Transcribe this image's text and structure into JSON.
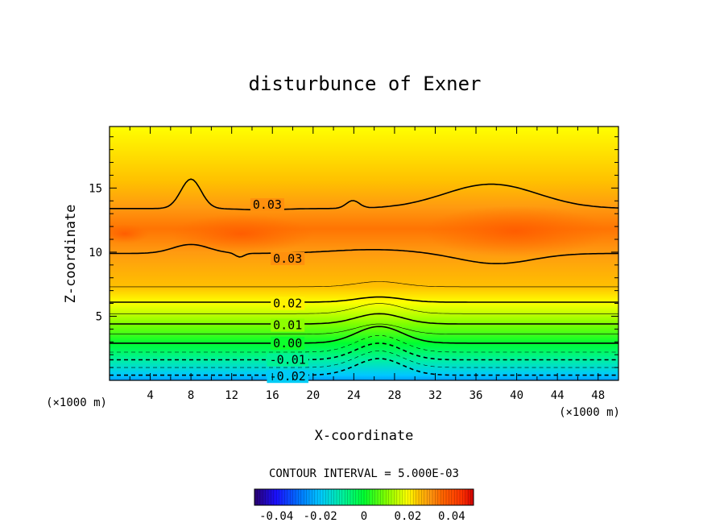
{
  "chart_data": {
    "type": "contour",
    "title": "disturbunce of Exner",
    "xlabel": "X-coordinate",
    "ylabel": "Z-coordinate",
    "x_unit": "(×1000 m)",
    "x_ticks": [
      4,
      8,
      12,
      16,
      20,
      24,
      28,
      32,
      36,
      40,
      44,
      48
    ],
    "y_ticks": [
      5,
      10,
      15
    ],
    "xlim": [
      0,
      50
    ],
    "ylim": [
      0,
      19.8
    ],
    "contour_interval_text": "CONTOUR INTERVAL = 5.000E-03",
    "contour_interval": 0.005,
    "contour_labels": [
      {
        "text": "0.03",
        "value": 0.03,
        "x": 15.5,
        "z": 13.7
      },
      {
        "text": "0.03",
        "value": 0.03,
        "x": 17.5,
        "z": 9.5
      },
      {
        "text": "0.02",
        "value": 0.02,
        "x": 17.5,
        "z": 6.0
      },
      {
        "text": "0.01",
        "value": 0.01,
        "x": 17.5,
        "z": 4.3
      },
      {
        "text": "0.00",
        "value": 0.0,
        "x": 17.5,
        "z": 2.9
      },
      {
        "text": "-0.01",
        "value": -0.01,
        "x": 17.5,
        "z": 1.6
      },
      {
        "text": "-0.02",
        "value": -0.02,
        "x": 17.5,
        "z": 0.3
      }
    ],
    "colorbar": {
      "range": [
        -0.05,
        0.05
      ],
      "tick_labels": [
        "-0.04",
        "-0.02",
        "0",
        "0.02",
        "0.04"
      ],
      "tick_values": [
        -0.04,
        -0.02,
        0,
        0.02,
        0.04
      ]
    },
    "field_levels_z": [
      {
        "value": -0.025,
        "z": 0.0
      },
      {
        "value": -0.02,
        "z": 0.4
      },
      {
        "value": -0.015,
        "z": 1.0
      },
      {
        "value": -0.01,
        "z": 1.6
      },
      {
        "value": -0.005,
        "z": 2.2
      },
      {
        "value": 0.0,
        "z": 2.9
      },
      {
        "value": 0.005,
        "z": 3.6
      },
      {
        "value": 0.01,
        "z": 4.4
      },
      {
        "value": 0.015,
        "z": 5.2
      },
      {
        "value": 0.02,
        "z": 6.1
      },
      {
        "value": 0.025,
        "z": 7.3
      },
      {
        "value": 0.03,
        "z": 10.0
      },
      {
        "value": 0.034,
        "z": 11.8
      },
      {
        "value": 0.03,
        "z": 13.5
      },
      {
        "value": 0.025,
        "z": 15.5
      },
      {
        "value": 0.02,
        "z": 19.8
      }
    ]
  },
  "colors": {
    "dark_blue": "#2050ff",
    "cyan": "#00e5e5",
    "green": "#00ff30",
    "yellow": "#ffff00",
    "orange": "#ff9a10",
    "red_orange": "#ff6a00"
  }
}
